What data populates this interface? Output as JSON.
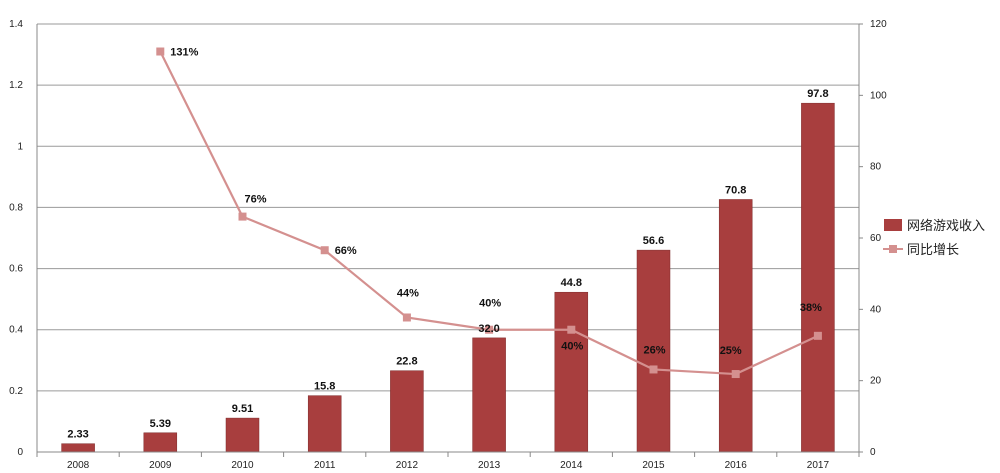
{
  "chart_data": {
    "type": "bar",
    "categories": [
      "2008",
      "2009",
      "2010",
      "2011",
      "2012",
      "2013",
      "2014",
      "2015",
      "2016",
      "2017"
    ],
    "series": [
      {
        "name": "网络游戏收入",
        "axis": "right",
        "values": [
          2.33,
          5.39,
          9.51,
          15.8,
          22.8,
          32.0,
          44.8,
          56.6,
          70.8,
          97.8
        ],
        "labels": [
          "2.33",
          "5.39",
          "9.51",
          "15.8",
          "22.8",
          "32.0",
          "44.8",
          "56.6",
          "70.8",
          "97.8"
        ],
        "color": "#a83e3e"
      },
      {
        "name": "同比增长",
        "type": "line",
        "axis": "left",
        "values": [
          null,
          1.31,
          0.76,
          0.66,
          0.44,
          0.4,
          0.4,
          0.26,
          0.25,
          0.38
        ],
        "plotted_values": [
          null,
          1.31,
          0.77,
          0.66,
          0.44,
          0.4,
          0.4,
          0.27,
          0.255,
          0.38
        ],
        "labels": [
          null,
          "131%",
          "76%",
          "66%",
          "44%",
          "40%",
          "40%",
          "26%",
          "25%",
          "38%"
        ],
        "color": "#d4908f"
      }
    ],
    "y_left": {
      "min": 0,
      "max": 1.4,
      "ticks": [
        "0",
        "0.2",
        "0.4",
        "0.6",
        "0.8",
        "1",
        "1.2",
        "1.4"
      ]
    },
    "y_right": {
      "min": 0,
      "max": 120,
      "ticks": [
        "0",
        "20",
        "40",
        "60",
        "80",
        "100",
        "120"
      ]
    },
    "grid": true,
    "legend": "right",
    "title": "",
    "xlabel": "",
    "ylabel": ""
  }
}
